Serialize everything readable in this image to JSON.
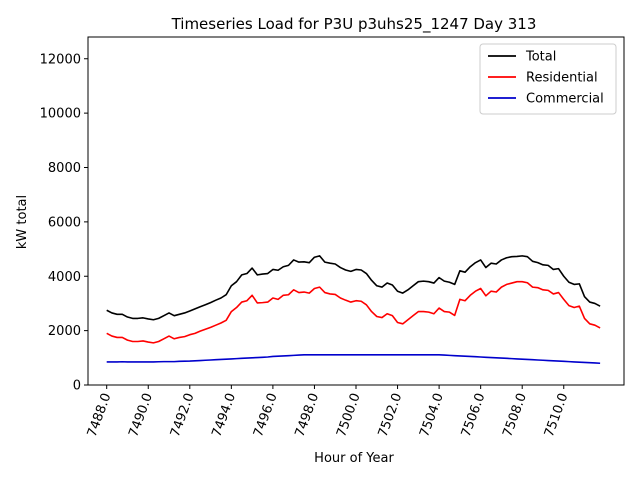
{
  "chart_data": {
    "type": "line",
    "title": "Timeseries Load for P3U p3uhs25_1247  Day 313",
    "xlabel": "Hour of Year",
    "ylabel": "kW total",
    "xlim": [
      7487.1,
      7512.9
    ],
    "ylim": [
      0,
      12800
    ],
    "xticks": [
      7488,
      7490,
      7492,
      7494,
      7496,
      7498,
      7500,
      7502,
      7504,
      7506,
      7508,
      7510
    ],
    "xtick_labels": [
      "7488.0",
      "7490.0",
      "7492.0",
      "7494.0",
      "7496.0",
      "7498.0",
      "7500.0",
      "7502.0",
      "7504.0",
      "7506.0",
      "7508.0",
      "7510.0"
    ],
    "yticks": [
      0,
      2000,
      4000,
      6000,
      8000,
      10000,
      12000
    ],
    "ytick_labels": [
      "0",
      "2000",
      "4000",
      "6000",
      "8000",
      "10000",
      "12000"
    ],
    "legend_position": "top-right",
    "x": [
      7488.0,
      7488.25,
      7488.5,
      7488.75,
      7489.0,
      7489.25,
      7489.5,
      7489.75,
      7490.0,
      7490.25,
      7490.5,
      7490.75,
      7491.0,
      7491.25,
      7491.5,
      7491.75,
      7492.0,
      7492.25,
      7492.5,
      7492.75,
      7493.0,
      7493.25,
      7493.5,
      7493.75,
      7494.0,
      7494.25,
      7494.5,
      7494.75,
      7495.0,
      7495.25,
      7495.5,
      7495.75,
      7496.0,
      7496.25,
      7496.5,
      7496.75,
      7497.0,
      7497.25,
      7497.5,
      7497.75,
      7498.0,
      7498.25,
      7498.5,
      7498.75,
      7499.0,
      7499.25,
      7499.5,
      7499.75,
      7500.0,
      7500.25,
      7500.5,
      7500.75,
      7501.0,
      7501.25,
      7501.5,
      7501.75,
      7502.0,
      7502.25,
      7502.5,
      7502.75,
      7503.0,
      7503.25,
      7503.5,
      7503.75,
      7504.0,
      7504.25,
      7504.5,
      7504.75,
      7505.0,
      7505.25,
      7505.5,
      7505.75,
      7506.0,
      7506.25,
      7506.5,
      7506.75,
      7507.0,
      7507.25,
      7507.5,
      7507.75,
      7508.0,
      7508.25,
      7508.5,
      7508.75,
      7509.0,
      7509.25,
      7509.5,
      7509.75,
      7510.0,
      7510.25,
      7510.5,
      7510.75,
      7511.0,
      7511.25,
      7511.5,
      7511.75
    ],
    "series": [
      {
        "name": "Total",
        "color": "#000000",
        "values": [
          2750,
          2650,
          2600,
          2600,
          2500,
          2450,
          2450,
          2470,
          2430,
          2400,
          2450,
          2550,
          2650,
          2550,
          2600,
          2650,
          2720,
          2800,
          2880,
          2950,
          3030,
          3120,
          3200,
          3320,
          3650,
          3800,
          4050,
          4100,
          4300,
          4050,
          4080,
          4100,
          4250,
          4220,
          4350,
          4400,
          4600,
          4520,
          4530,
          4500,
          4700,
          4750,
          4520,
          4480,
          4450,
          4320,
          4230,
          4180,
          4250,
          4230,
          4100,
          3850,
          3650,
          3600,
          3750,
          3680,
          3450,
          3380,
          3500,
          3650,
          3800,
          3820,
          3800,
          3750,
          3950,
          3820,
          3780,
          3700,
          4200,
          4150,
          4350,
          4500,
          4600,
          4320,
          4480,
          4450,
          4600,
          4680,
          4720,
          4730,
          4750,
          4720,
          4550,
          4500,
          4420,
          4400,
          4250,
          4280,
          4000,
          3780,
          3700,
          3720,
          3250,
          3050,
          3000,
          2900
        ]
      },
      {
        "name": "Residential",
        "color": "#ff0000",
        "values": [
          1900,
          1800,
          1750,
          1750,
          1650,
          1600,
          1600,
          1620,
          1580,
          1550,
          1600,
          1700,
          1800,
          1700,
          1750,
          1780,
          1850,
          1900,
          1980,
          2050,
          2120,
          2200,
          2280,
          2380,
          2700,
          2850,
          3050,
          3100,
          3300,
          3020,
          3030,
          3050,
          3200,
          3150,
          3300,
          3320,
          3500,
          3400,
          3420,
          3380,
          3550,
          3600,
          3400,
          3350,
          3330,
          3200,
          3120,
          3050,
          3100,
          3080,
          2950,
          2700,
          2520,
          2480,
          2620,
          2550,
          2300,
          2250,
          2400,
          2550,
          2700,
          2700,
          2680,
          2620,
          2830,
          2700,
          2680,
          2560,
          3150,
          3100,
          3300,
          3450,
          3550,
          3280,
          3450,
          3420,
          3600,
          3700,
          3750,
          3800,
          3800,
          3760,
          3600,
          3580,
          3500,
          3480,
          3350,
          3400,
          3150,
          2920,
          2850,
          2900,
          2450,
          2250,
          2200,
          2100
        ]
      },
      {
        "name": "Commercial",
        "color": "#0000cc",
        "values": [
          850,
          850,
          850,
          855,
          850,
          850,
          850,
          850,
          850,
          850,
          855,
          860,
          860,
          860,
          870,
          875,
          880,
          890,
          900,
          910,
          920,
          930,
          940,
          950,
          960,
          970,
          980,
          990,
          1000,
          1010,
          1020,
          1030,
          1050,
          1060,
          1070,
          1080,
          1090,
          1100,
          1110,
          1110,
          1110,
          1110,
          1110,
          1110,
          1110,
          1110,
          1110,
          1110,
          1110,
          1110,
          1110,
          1110,
          1110,
          1110,
          1110,
          1110,
          1110,
          1110,
          1110,
          1110,
          1110,
          1110,
          1110,
          1110,
          1110,
          1100,
          1090,
          1080,
          1070,
          1060,
          1050,
          1040,
          1030,
          1020,
          1010,
          1000,
          990,
          980,
          970,
          960,
          950,
          940,
          930,
          920,
          910,
          900,
          890,
          880,
          870,
          860,
          850,
          840,
          830,
          820,
          810,
          800
        ]
      }
    ]
  }
}
